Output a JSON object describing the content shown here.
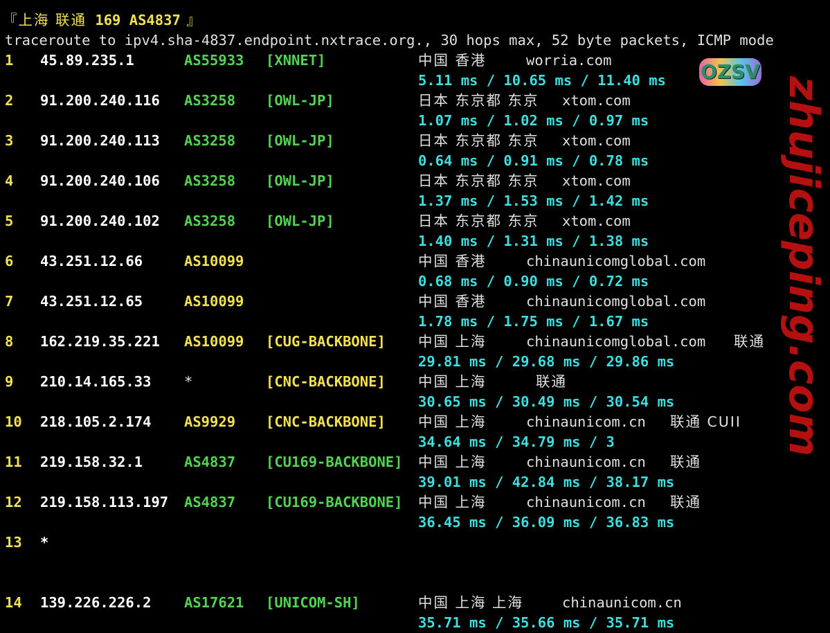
{
  "header": {
    "bracket_open": "『",
    "location": "上海 联通",
    "tag": "169 AS4837",
    "bracket_close": " 』",
    "command": "traceroute to ipv4.sha-4837.endpoint.nxtrace.org., 30 hops max, 52 byte packets, ICMP mode"
  },
  "colors": {
    "hop": "#f2e250",
    "ip": "#ffffff",
    "green": "#52d452",
    "yellow": "#f2e250",
    "latency": "#3fdede",
    "background": "#000000"
  },
  "hops": [
    {
      "hop": "1",
      "ip": "45.89.235.1",
      "asn": "AS55933",
      "asn_color": "green",
      "tag": "[XNNET]",
      "tag_color": "green",
      "loc": "中国 香港",
      "domain": "worria.com",
      "isp": "",
      "latency": "5.11 ms / 10.65 ms / 11.40 ms"
    },
    {
      "hop": "2",
      "ip": "91.200.240.116",
      "asn": "AS3258",
      "asn_color": "green",
      "tag": "[OWL-JP]",
      "tag_color": "green",
      "loc": "日本 东京都 东京",
      "domain": "xtom.com",
      "isp": "",
      "latency": "1.07 ms / 1.02 ms / 0.97 ms"
    },
    {
      "hop": "3",
      "ip": "91.200.240.113",
      "asn": "AS3258",
      "asn_color": "green",
      "tag": "[OWL-JP]",
      "tag_color": "green",
      "loc": "日本 东京都 东京",
      "domain": "xtom.com",
      "isp": "",
      "latency": "0.64 ms / 0.91 ms / 0.78 ms"
    },
    {
      "hop": "4",
      "ip": "91.200.240.106",
      "asn": "AS3258",
      "asn_color": "green",
      "tag": "[OWL-JP]",
      "tag_color": "green",
      "loc": "日本 东京都 东京",
      "domain": "xtom.com",
      "isp": "",
      "latency": "1.37 ms / 1.53 ms / 1.42 ms"
    },
    {
      "hop": "5",
      "ip": "91.200.240.102",
      "asn": "AS3258",
      "asn_color": "green",
      "tag": "[OWL-JP]",
      "tag_color": "green",
      "loc": "日本 东京都 东京",
      "domain": "xtom.com",
      "isp": "",
      "latency": "1.40 ms / 1.31 ms / 1.38 ms"
    },
    {
      "hop": "6",
      "ip": "43.251.12.66",
      "asn": "AS10099",
      "asn_color": "yellow",
      "tag": "",
      "tag_color": "yellow",
      "loc": "中国 香港",
      "domain": "chinaunicomglobal.com",
      "isp": "",
      "latency": "0.68 ms / 0.90 ms / 0.72 ms"
    },
    {
      "hop": "7",
      "ip": "43.251.12.65",
      "asn": "AS10099",
      "asn_color": "yellow",
      "tag": "",
      "tag_color": "yellow",
      "loc": "中国 香港",
      "domain": "chinaunicomglobal.com",
      "isp": "",
      "latency": "1.78 ms / 1.75 ms / 1.67 ms"
    },
    {
      "hop": "8",
      "ip": "162.219.35.221",
      "asn": "AS10099",
      "asn_color": "yellow",
      "tag": "[CUG-BACKBONE]",
      "tag_color": "yellow",
      "loc": "中国 上海",
      "domain": "chinaunicomglobal.com",
      "isp": "联通",
      "latency": "29.81 ms / 29.68 ms / 29.86 ms"
    },
    {
      "hop": "9",
      "ip": "210.14.165.33",
      "asn": "*",
      "asn_color": "plain",
      "tag": "[CNC-BACKBONE]",
      "tag_color": "yellow",
      "loc": "中国 上海",
      "domain": "",
      "isp": "联通",
      "latency": "30.65 ms / 30.49 ms / 30.54 ms"
    },
    {
      "hop": "10",
      "ip": "218.105.2.174",
      "asn": "AS9929",
      "asn_color": "yellow",
      "tag": "[CNC-BACKBONE]",
      "tag_color": "yellow",
      "loc": "中国 上海",
      "domain": "chinaunicom.cn",
      "isp": "联通 CUII",
      "latency": "34.64 ms / 34.79 ms / 3"
    },
    {
      "hop": "11",
      "ip": "219.158.32.1",
      "asn": "AS4837",
      "asn_color": "green",
      "tag": "[CU169-BACKBONE]",
      "tag_color": "green",
      "loc": "中国 上海",
      "domain": "chinaunicom.cn",
      "isp": "联通",
      "latency": "39.01 ms / 42.84 ms / 38.17 ms"
    },
    {
      "hop": "12",
      "ip": "219.158.113.197",
      "asn": "AS4837",
      "asn_color": "green",
      "tag": "[CU169-BACKBONE]",
      "tag_color": "green",
      "loc": "中国 上海",
      "domain": "chinaunicom.cn",
      "isp": "联通",
      "latency": "36.45 ms / 36.09 ms / 36.83 ms"
    },
    {
      "hop": "13",
      "ip": "*",
      "asn": "",
      "asn_color": "plain",
      "tag": "",
      "tag_color": "plain",
      "loc": "",
      "domain": "",
      "isp": "",
      "latency": ""
    },
    {
      "hop": "14",
      "ip": "139.226.226.2",
      "asn": "AS17621",
      "asn_color": "green",
      "tag": "[UNICOM-SH]",
      "tag_color": "green",
      "loc": "中国 上海 上海",
      "domain": "chinaunicom.cn",
      "isp": "",
      "latency": "35.71 ms / 35.66 ms / 35.71 ms"
    }
  ],
  "watermark": "zhujiceping.com",
  "logo": "OZSV"
}
